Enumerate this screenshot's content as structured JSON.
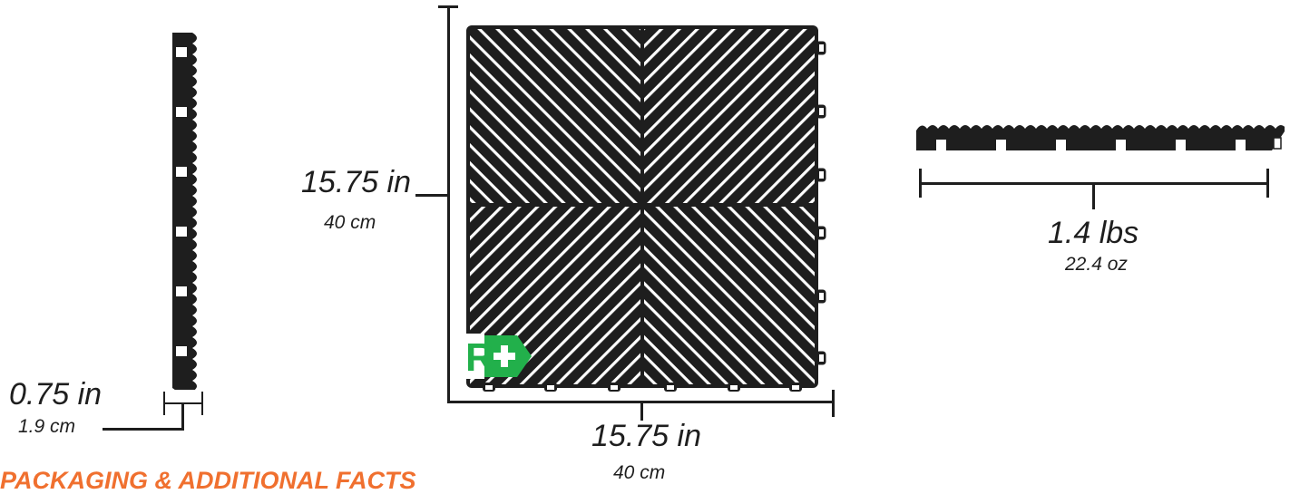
{
  "dimensions": {
    "thickness": {
      "imperial": "0.75 in",
      "metric": "1.9 cm"
    },
    "height": {
      "imperial": "15.75 in",
      "metric": "40 cm"
    },
    "width": {
      "imperial": "15.75 in",
      "metric": "40 cm"
    },
    "weight": {
      "imperial": "1.4 lbs",
      "metric": "22.4 oz"
    }
  },
  "brand_badge": {
    "letter": "R",
    "symbol": "+",
    "color": "#22b04b"
  },
  "colors": {
    "tile": "#1e1e1e",
    "accent": "#f0702f",
    "badge": "#22b04b"
  },
  "section_heading": "PACKAGING & ADDITIONAL FACTS"
}
